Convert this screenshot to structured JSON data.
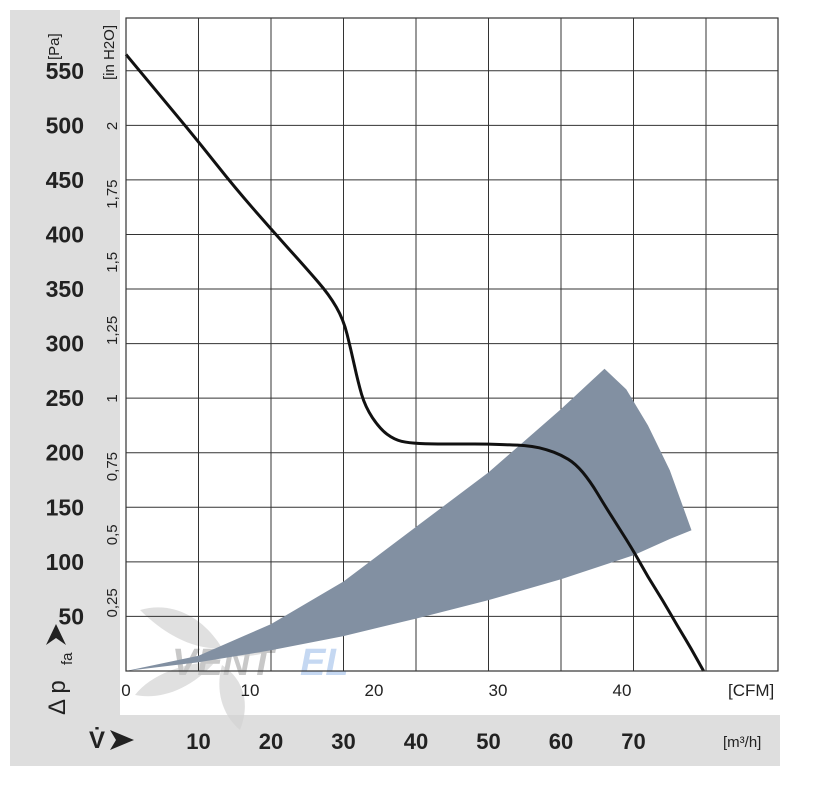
{
  "chart_data": {
    "type": "line",
    "y_axis_pa": {
      "unit": "[Pa]",
      "label": "Δ p",
      "label_sub": "fa",
      "ticks": [
        "50",
        "100",
        "150",
        "200",
        "250",
        "300",
        "350",
        "400",
        "450",
        "500",
        "550"
      ],
      "tick_values": [
        50,
        100,
        150,
        200,
        250,
        300,
        350,
        400,
        450,
        500,
        550
      ]
    },
    "y_axis_inh2o": {
      "unit": "[in H2O]",
      "ticks": [
        "0,25",
        "0,5",
        "0,75",
        "1",
        "1,25",
        "1,5",
        "1,75",
        "2"
      ],
      "tick_values": [
        0.25,
        0.5,
        0.75,
        1,
        1.25,
        1.5,
        1.75,
        2
      ]
    },
    "x_axis_cfm": {
      "unit": "[CFM]",
      "ticks": [
        "0",
        "10",
        "20",
        "30",
        "40"
      ],
      "tick_values": [
        0,
        10,
        20,
        30,
        40
      ]
    },
    "x_axis_m3h": {
      "label": "V̇",
      "unit": "[m³/h]",
      "ticks": [
        "10",
        "20",
        "30",
        "40",
        "50",
        "60",
        "70"
      ],
      "tick_values": [
        10,
        20,
        30,
        40,
        50,
        60,
        70
      ]
    },
    "xlim_m3h": [
      0,
      90
    ],
    "ylim_pa": [
      0,
      560
    ],
    "grid": true,
    "series": [
      {
        "color": "#111111",
        "x": [
          0,
          5,
          10,
          15,
          20,
          25,
          28,
          30,
          31,
          32,
          33,
          35,
          37,
          39,
          42,
          46,
          50,
          54,
          56,
          58,
          60,
          62,
          64,
          66,
          68,
          70,
          72,
          74,
          76,
          78,
          80,
          82
        ],
        "y": [
          565,
          525,
          485,
          443,
          405,
          368,
          345,
          322,
          295,
          265,
          242,
          222,
          212,
          209,
          208,
          208,
          208,
          207,
          206,
          203,
          198,
          190,
          174,
          152,
          131,
          110,
          86,
          65,
          42,
          20,
          -4,
          -28
        ]
      }
    ],
    "operating_region": {
      "color": "#8290A2",
      "boundary_x": [
        0,
        10,
        20,
        30,
        40,
        50,
        60,
        66,
        69,
        72,
        75,
        78,
        75,
        70,
        65,
        60,
        50,
        40,
        30,
        20,
        10,
        0
      ],
      "boundary_y": [
        0,
        14,
        43,
        82,
        132,
        182,
        240,
        277,
        258,
        225,
        184,
        129,
        121,
        106,
        95,
        84,
        65,
        48,
        32,
        19,
        8,
        0
      ]
    }
  },
  "watermark": {
    "text": "VENTEL",
    "left_text": "VENT",
    "right_text": "EL",
    "left_color": "#c8c8c8",
    "right_color": "#c5d8f2"
  },
  "colors": {
    "panel": "#dedede",
    "grid": "#333333",
    "curve": "#111111",
    "region": "#8290A2"
  }
}
